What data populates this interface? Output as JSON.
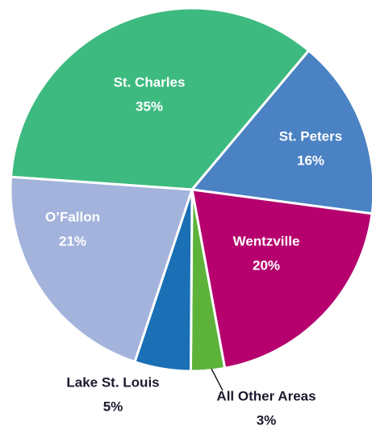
{
  "chart_data": {
    "type": "pie",
    "categories": [
      "St. Charles",
      "St. Peters",
      "Wentzville",
      "All Other Areas",
      "Lake St. Louis",
      "O’Fallon"
    ],
    "values": [
      35,
      16,
      20,
      3,
      5,
      21
    ],
    "value_labels": [
      "35%",
      "16%",
      "20%",
      "3%",
      "5%",
      "21%"
    ],
    "colors": [
      "#3dba7f",
      "#4a82c3",
      "#b5006e",
      "#5db33a",
      "#1a6fb5",
      "#a3b3dc"
    ]
  }
}
